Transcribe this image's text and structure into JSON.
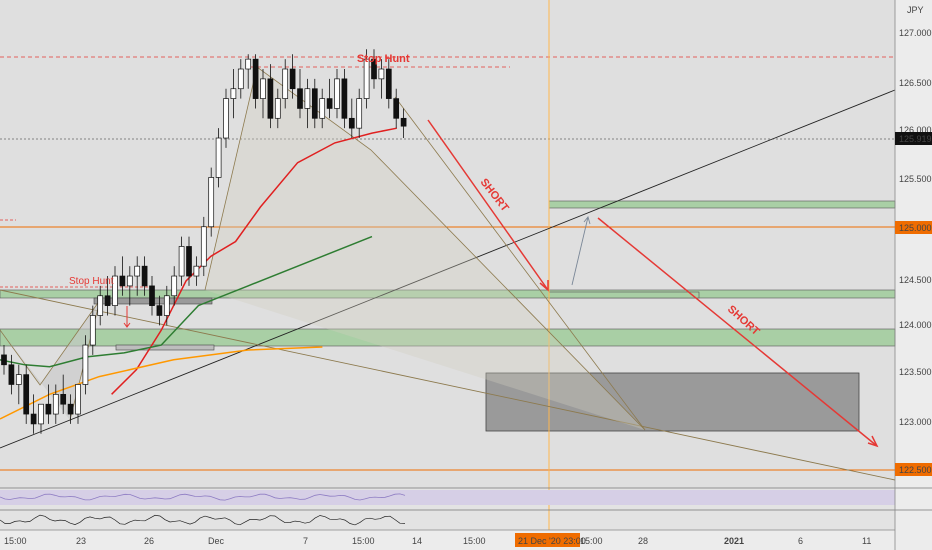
{
  "chart_data": {
    "type": "candlestick",
    "title": "",
    "currency": "JPY",
    "current_price": "125.919",
    "y_ticks": [
      "127.000",
      "126.500",
      "126.000",
      "125.500",
      "125.000",
      "124.500",
      "124.000",
      "123.500",
      "123.000",
      "122.500"
    ],
    "highlighted_levels": [
      "125.000",
      "122.500"
    ],
    "x_ticks": [
      "15:00",
      "23",
      "26",
      "Dec",
      "7",
      "15:00",
      "14",
      "15:00",
      "22",
      "15:00",
      "28",
      "2021",
      "6",
      "11"
    ],
    "crosshair_label": "21 Dec '20  23:00",
    "ylim": [
      122.25,
      127.2
    ],
    "annotations": [
      "Stop Hunt",
      "Stop Hunt",
      "SHORT",
      "SHORT"
    ],
    "candles": [
      [
        123.6,
        123.7,
        123.4,
        123.5
      ],
      [
        123.5,
        123.6,
        123.2,
        123.3
      ],
      [
        123.3,
        123.5,
        123.1,
        123.4
      ],
      [
        123.4,
        123.5,
        122.9,
        123.0
      ],
      [
        123.0,
        123.2,
        122.8,
        122.9
      ],
      [
        122.9,
        123.1,
        122.8,
        123.1
      ],
      [
        123.1,
        123.3,
        122.9,
        123.0
      ],
      [
        123.0,
        123.3,
        122.9,
        123.2
      ],
      [
        123.2,
        123.4,
        123.0,
        123.1
      ],
      [
        123.1,
        123.2,
        122.9,
        123.0
      ],
      [
        123.0,
        123.3,
        122.9,
        123.3
      ],
      [
        123.3,
        123.8,
        123.2,
        123.7
      ],
      [
        123.7,
        124.1,
        123.6,
        124.0
      ],
      [
        124.0,
        124.3,
        123.9,
        124.2
      ],
      [
        124.2,
        124.4,
        124.0,
        124.1
      ],
      [
        124.1,
        124.5,
        124.0,
        124.4
      ],
      [
        124.4,
        124.6,
        124.2,
        124.3
      ],
      [
        124.3,
        124.5,
        124.1,
        124.4
      ],
      [
        124.4,
        124.6,
        124.2,
        124.5
      ],
      [
        124.5,
        124.6,
        124.2,
        124.3
      ],
      [
        124.3,
        124.4,
        124.0,
        124.1
      ],
      [
        124.1,
        124.2,
        123.9,
        124.0
      ],
      [
        124.0,
        124.3,
        123.9,
        124.2
      ],
      [
        124.2,
        124.5,
        124.1,
        124.4
      ],
      [
        124.4,
        124.8,
        124.3,
        124.7
      ],
      [
        124.7,
        124.8,
        124.3,
        124.4
      ],
      [
        124.4,
        124.6,
        124.3,
        124.5
      ],
      [
        124.5,
        125.0,
        124.4,
        124.9
      ],
      [
        124.9,
        125.5,
        124.8,
        125.4
      ],
      [
        125.4,
        125.9,
        125.3,
        125.8
      ],
      [
        125.8,
        126.3,
        125.7,
        126.2
      ],
      [
        126.2,
        126.5,
        126.0,
        126.3
      ],
      [
        126.3,
        126.6,
        126.2,
        126.5
      ],
      [
        126.5,
        126.65,
        126.3,
        126.6
      ],
      [
        126.6,
        126.65,
        126.1,
        126.2
      ],
      [
        126.2,
        126.5,
        126.0,
        126.4
      ],
      [
        126.4,
        126.55,
        125.9,
        126.0
      ],
      [
        126.0,
        126.3,
        125.9,
        126.2
      ],
      [
        126.2,
        126.6,
        126.1,
        126.5
      ],
      [
        126.5,
        126.65,
        126.2,
        126.3
      ],
      [
        126.3,
        126.5,
        126.0,
        126.1
      ],
      [
        126.1,
        126.4,
        125.9,
        126.3
      ],
      [
        126.3,
        126.4,
        125.9,
        126.0
      ],
      [
        126.0,
        126.3,
        125.9,
        126.2
      ],
      [
        126.2,
        126.4,
        126.0,
        126.1
      ],
      [
        126.1,
        126.5,
        126.0,
        126.4
      ],
      [
        126.4,
        126.5,
        125.9,
        126.0
      ],
      [
        126.0,
        126.2,
        125.8,
        125.9
      ],
      [
        125.9,
        126.3,
        125.8,
        126.2
      ],
      [
        126.2,
        126.7,
        126.1,
        126.6
      ],
      [
        126.6,
        126.7,
        126.3,
        126.4
      ],
      [
        126.4,
        126.6,
        126.2,
        126.5
      ],
      [
        126.5,
        126.6,
        126.1,
        126.2
      ],
      [
        126.2,
        126.3,
        125.9,
        126.0
      ],
      [
        126.0,
        126.1,
        125.8,
        125.92
      ]
    ],
    "series": [
      {
        "name": "",
        "color": "#e02020",
        "values": [
          [
            0.45,
            123.2
          ],
          [
            0.55,
            123.45
          ],
          [
            0.65,
            123.85
          ],
          [
            0.75,
            124.35
          ],
          [
            0.85,
            124.6
          ],
          [
            0.95,
            124.75
          ],
          [
            1.05,
            125.1
          ],
          [
            1.2,
            125.55
          ],
          [
            1.35,
            125.75
          ],
          [
            1.5,
            125.85
          ],
          [
            1.6,
            125.9
          ]
        ]
      },
      {
        "name": "",
        "color": "#2e7d32",
        "values": [
          [
            0.0,
            123.55
          ],
          [
            0.1,
            123.5
          ],
          [
            0.2,
            123.48
          ],
          [
            0.35,
            123.58
          ],
          [
            0.5,
            123.62
          ],
          [
            0.65,
            123.7
          ],
          [
            0.8,
            124.1
          ],
          [
            1.0,
            124.3
          ],
          [
            1.3,
            124.6
          ],
          [
            1.5,
            124.8
          ]
        ]
      },
      {
        "name": "",
        "color": "#ff9800",
        "values": [
          [
            0.0,
            122.95
          ],
          [
            0.2,
            123.2
          ],
          [
            0.4,
            123.38
          ],
          [
            0.7,
            123.55
          ],
          [
            1.0,
            123.65
          ],
          [
            1.3,
            123.68
          ]
        ]
      }
    ]
  }
}
